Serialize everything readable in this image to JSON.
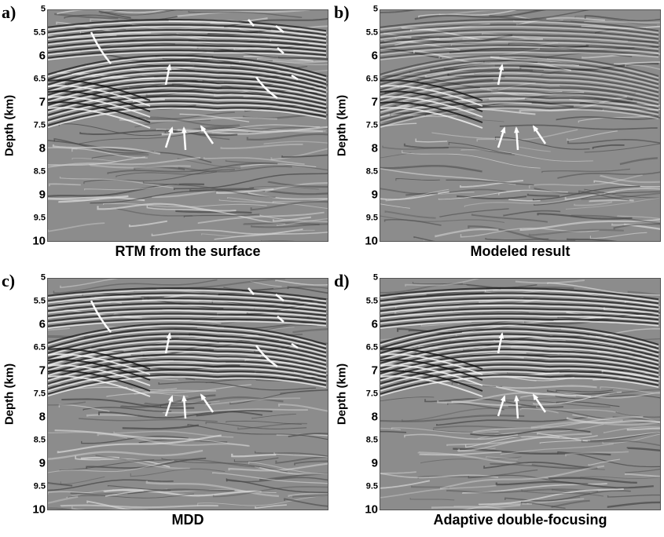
{
  "axis": {
    "ylabel": "Depth (km)",
    "yticks": [
      "5",
      "5.5",
      "6",
      "6.5",
      "7",
      "7.5",
      "8",
      "8.5",
      "9",
      "9.5",
      "10"
    ]
  },
  "panels": [
    {
      "letter": "a)",
      "caption": "RTM from the surface"
    },
    {
      "letter": "b)",
      "caption": "Modeled result"
    },
    {
      "letter": "c)",
      "caption": "MDD"
    },
    {
      "letter": "d)",
      "caption": "Adaptive double-focusing"
    }
  ]
}
